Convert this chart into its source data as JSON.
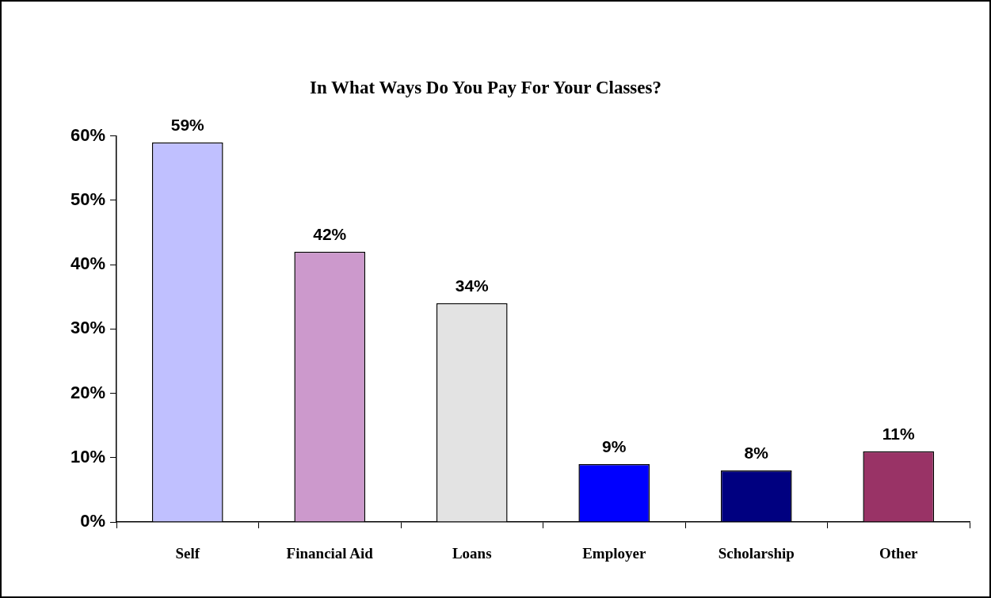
{
  "chart_data": {
    "type": "bar",
    "title": "In What Ways Do You Pay For Your Classes?",
    "categories": [
      "Self",
      "Financial Aid",
      "Loans",
      "Employer",
      "Scholarship",
      "Other"
    ],
    "values": [
      59,
      42,
      34,
      9,
      8,
      11
    ],
    "colors": [
      "#c0c0ff",
      "#cc99cc",
      "#e3e3e3",
      "#0000ff",
      "#000080",
      "#993366"
    ],
    "value_labels": [
      "59%",
      "42%",
      "34%",
      "9%",
      "8%",
      "11%"
    ],
    "ylim": [
      0,
      60
    ],
    "yticks": [
      {
        "value": 0,
        "label": "0%"
      },
      {
        "value": 10,
        "label": "10%"
      },
      {
        "value": 20,
        "label": "20%"
      },
      {
        "value": 30,
        "label": "30%"
      },
      {
        "value": 40,
        "label": "40%"
      },
      {
        "value": 50,
        "label": "50%"
      },
      {
        "value": 60,
        "label": "60%"
      }
    ],
    "legend": false,
    "grid": false
  }
}
